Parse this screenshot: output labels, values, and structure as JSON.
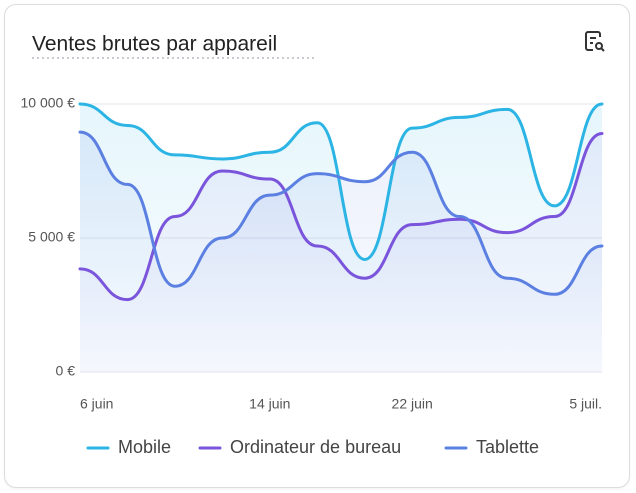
{
  "chart_data": {
    "type": "line",
    "title": "Ventes brutes par appareil",
    "categories": [
      "6 juin",
      null,
      null,
      null,
      "14 juin",
      null,
      null,
      "22 juin",
      null,
      null,
      null,
      "5 juil."
    ],
    "series": [
      {
        "name": "Mobile",
        "color": "#2bb4e4",
        "values": [
          10000,
          9200,
          8100,
          7950,
          8200,
          9300,
          4200,
          9100,
          9500,
          9800,
          6200,
          10000
        ]
      },
      {
        "name": "Ordinateur de bureau",
        "color": "#7a55dc",
        "values": [
          3850,
          2700,
          5800,
          7500,
          7200,
          4700,
          3500,
          5500,
          5700,
          5200,
          5800,
          8900
        ]
      },
      {
        "name": "Tablette",
        "color": "#5b80e2",
        "values": [
          8950,
          7000,
          3200,
          5000,
          6600,
          7400,
          7100,
          8200,
          5800,
          3500,
          2900,
          4700
        ]
      }
    ],
    "ylim": [
      0,
      10000
    ],
    "yticks": [
      {
        "value": 0,
        "label": "0 €"
      },
      {
        "value": 5000,
        "label": "5 000 €"
      },
      {
        "value": 10000,
        "label": "10 000 €"
      }
    ],
    "grid": true
  }
}
